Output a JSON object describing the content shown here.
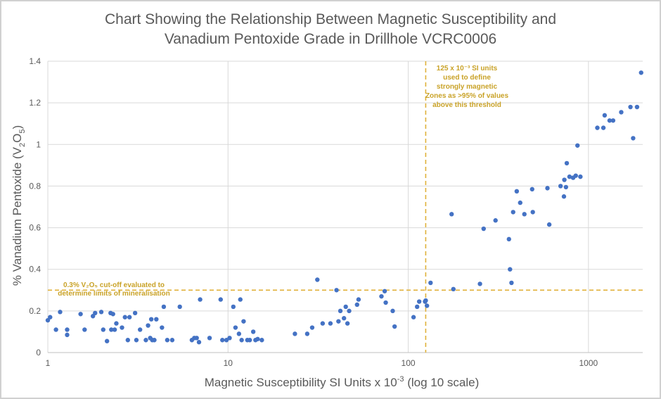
{
  "chart_data": {
    "type": "scatter",
    "title_line1": "Chart Showing the Relationship Between Magnetic Susceptibility and",
    "title_line2": "Vanadium Pentoxide Grade in Drillhole VCRC0006",
    "xlabel_prefix": "Magnetic Susceptibility SI Units x 10",
    "xlabel_exp": "-3",
    "xlabel_suffix": " (log 10 scale)",
    "ylabel_prefix": "% Vanadium Pentoxide (V",
    "ylabel_sub1": "2",
    "ylabel_mid": "O",
    "ylabel_sub2": "5",
    "ylabel_suffix": ")",
    "xscale": "log",
    "xlim": [
      1,
      2000
    ],
    "ylim": [
      0,
      1.4
    ],
    "xticks": [
      1,
      10,
      100,
      1000
    ],
    "xtick_labels": [
      "1",
      "10",
      "100",
      "1000"
    ],
    "yticks": [
      0,
      0.2,
      0.4,
      0.6,
      0.8,
      1,
      1.2,
      1.4
    ],
    "ytick_labels": [
      "0",
      "0.2",
      "0.4",
      "0.6",
      "0.8",
      "1",
      "1.2",
      "1.4"
    ],
    "grid": true,
    "marker_color": "#4472c4",
    "threshold_color": "#e0b13a",
    "horizontal_threshold": 0.3,
    "vertical_threshold": 125,
    "annotation_h_lines": [
      "0.3% V₂O₅ cut-off evaluated to",
      "determine limits of mineralisation"
    ],
    "annotation_v_lines": [
      "125 x 10⁻³ SI units",
      "used to define",
      "strongly magnetic",
      "Zones as >95% of values",
      "above this threshold"
    ],
    "x": [
      1.0,
      1.03,
      1.11,
      1.17,
      1.28,
      1.28,
      1.52,
      1.6,
      1.78,
      1.83,
      1.98,
      2.03,
      2.13,
      2.23,
      2.25,
      2.3,
      2.35,
      2.4,
      2.58,
      2.68,
      2.78,
      2.84,
      3.05,
      3.1,
      3.25,
      3.5,
      3.6,
      3.7,
      3.75,
      3.8,
      3.9,
      4.0,
      4.3,
      4.4,
      4.6,
      4.9,
      5.4,
      6.3,
      6.5,
      6.7,
      6.9,
      7.0,
      7.9,
      9.1,
      9.3,
      9.8,
      10.2,
      10.7,
      11.0,
      11.5,
      11.7,
      11.9,
      12.2,
      12.8,
      13.2,
      13.8,
      14.2,
      14.6,
      15.4,
      23.5,
      27.5,
      29.3,
      31.3,
      33.5,
      37.0,
      40.0,
      41.0,
      42.0,
      44.0,
      45.0,
      46.0,
      47.0,
      52.0,
      53.0,
      71.0,
      74.0,
      75.0,
      82.0,
      84.0,
      107,
      112,
      115,
      124,
      125,
      127,
      133,
      174,
      178,
      250,
      262,
      305,
      362,
      367,
      374,
      382,
      400,
      418,
      441,
      487,
      491,
      592,
      606,
      700,
      731,
      735,
      750,
      758,
      785,
      822,
      850,
      869,
      902,
      1120,
      1210,
      1230,
      1310,
      1370,
      1520,
      1710,
      1770,
      1860,
      1960
    ],
    "y": [
      0.155,
      0.17,
      0.11,
      0.195,
      0.085,
      0.11,
      0.185,
      0.11,
      0.175,
      0.19,
      0.195,
      0.11,
      0.055,
      0.19,
      0.11,
      0.185,
      0.11,
      0.14,
      0.12,
      0.17,
      0.06,
      0.17,
      0.19,
      0.06,
      0.11,
      0.06,
      0.13,
      0.07,
      0.16,
      0.06,
      0.06,
      0.16,
      0.12,
      0.22,
      0.06,
      0.06,
      0.22,
      0.06,
      0.07,
      0.07,
      0.05,
      0.255,
      0.07,
      0.255,
      0.06,
      0.06,
      0.07,
      0.22,
      0.12,
      0.09,
      0.255,
      0.06,
      0.15,
      0.06,
      0.06,
      0.1,
      0.06,
      0.065,
      0.06,
      0.09,
      0.09,
      0.12,
      0.35,
      0.14,
      0.14,
      0.3,
      0.15,
      0.2,
      0.165,
      0.22,
      0.14,
      0.2,
      0.23,
      0.255,
      0.27,
      0.295,
      0.24,
      0.2,
      0.125,
      0.17,
      0.22,
      0.245,
      0.245,
      0.25,
      0.225,
      0.335,
      0.665,
      0.305,
      0.33,
      0.595,
      0.635,
      0.545,
      0.4,
      0.335,
      0.675,
      0.775,
      0.72,
      0.665,
      0.785,
      0.675,
      0.79,
      0.615,
      0.8,
      0.75,
      0.83,
      0.795,
      0.91,
      0.845,
      0.84,
      0.85,
      0.995,
      0.845,
      1.08,
      1.08,
      1.14,
      1.115,
      1.115,
      1.155,
      1.18,
      1.03,
      1.18,
      1.345
    ]
  }
}
